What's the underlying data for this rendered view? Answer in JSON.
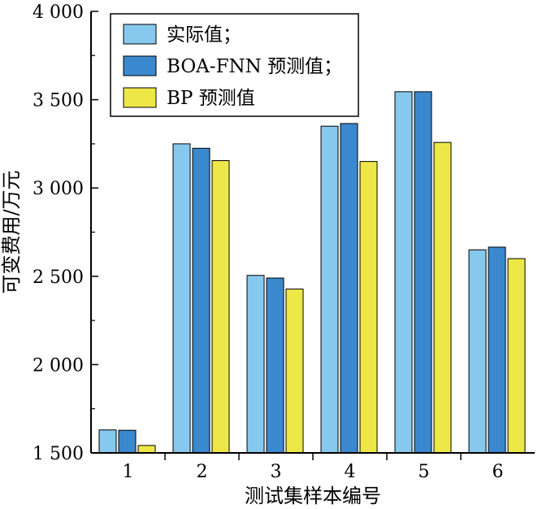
{
  "chart_data": {
    "type": "bar",
    "xlabel": "测试集样本编号",
    "ylabel": "可变费用/万元",
    "ylim": [
      1500,
      4000
    ],
    "yticks": [
      "1 500",
      "2 000",
      "2 500",
      "3 000",
      "3 500",
      "4 000"
    ],
    "ytick_values": [
      1500,
      2000,
      2500,
      3000,
      3500,
      4000
    ],
    "categories": [
      "1",
      "2",
      "3",
      "4",
      "5",
      "6"
    ],
    "grid": false,
    "legend_position": "top-left",
    "series": [
      {
        "name": "实际值；",
        "color": "#87c8ee",
        "values": [
          1630,
          3250,
          2505,
          3350,
          3545,
          2650
        ]
      },
      {
        "name": "BOA-FNN 预测值；",
        "color": "#3a89cf",
        "values": [
          1628,
          3225,
          2490,
          3365,
          3545,
          2665
        ]
      },
      {
        "name": "BP 预测值",
        "color": "#ede748",
        "values": [
          1542,
          3155,
          2428,
          3150,
          3258,
          2600
        ]
      }
    ]
  }
}
